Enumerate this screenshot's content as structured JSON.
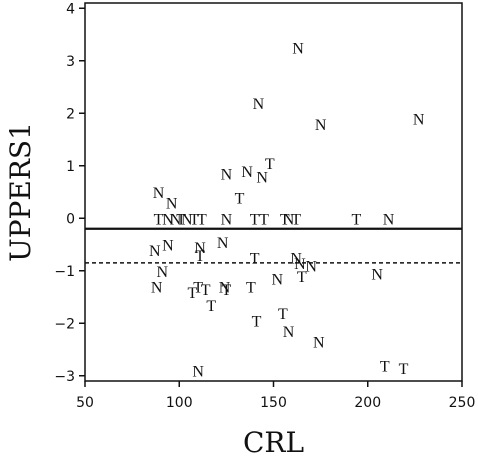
{
  "chart_data": {
    "type": "scatter",
    "title": "",
    "xlabel": "CRL",
    "ylabel": "UPPERS1",
    "xlim": [
      50,
      250
    ],
    "ylim": [
      -3.1,
      4.1
    ],
    "xticks": [
      "50",
      "100",
      "150",
      "200",
      "250"
    ],
    "yticks": [
      "−3",
      "−2",
      "−1",
      "0",
      "1",
      "2",
      "3",
      "4"
    ],
    "grid": false,
    "legend": "none",
    "reference_lines": [
      {
        "style": "solid",
        "y": -0.2
      },
      {
        "style": "dashed",
        "y": -0.85
      }
    ],
    "points": [
      {
        "x": 163,
        "y": 3.25,
        "label": "N"
      },
      {
        "x": 142,
        "y": 2.2,
        "label": "N"
      },
      {
        "x": 227,
        "y": 1.9,
        "label": "N"
      },
      {
        "x": 175,
        "y": 1.8,
        "label": "N"
      },
      {
        "x": 148,
        "y": 1.05,
        "label": "T"
      },
      {
        "x": 125,
        "y": 0.85,
        "label": "N"
      },
      {
        "x": 136,
        "y": 0.9,
        "label": "N"
      },
      {
        "x": 144,
        "y": 0.8,
        "label": "N"
      },
      {
        "x": 132,
        "y": 0.4,
        "label": "T"
      },
      {
        "x": 89,
        "y": 0.5,
        "label": "N"
      },
      {
        "x": 96,
        "y": 0.3,
        "label": "N"
      },
      {
        "x": 89,
        "y": 0.0,
        "label": "T"
      },
      {
        "x": 94,
        "y": 0.0,
        "label": "N"
      },
      {
        "x": 98,
        "y": 0.0,
        "label": "N"
      },
      {
        "x": 101,
        "y": 0.0,
        "label": "T"
      },
      {
        "x": 104,
        "y": 0.0,
        "label": "N"
      },
      {
        "x": 108,
        "y": 0.0,
        "label": "T"
      },
      {
        "x": 112,
        "y": 0.0,
        "label": "T"
      },
      {
        "x": 125,
        "y": 0.0,
        "label": "N"
      },
      {
        "x": 140,
        "y": 0.0,
        "label": "T"
      },
      {
        "x": 145,
        "y": 0.0,
        "label": "T"
      },
      {
        "x": 156,
        "y": 0.0,
        "label": "T"
      },
      {
        "x": 158,
        "y": 0.0,
        "label": "N"
      },
      {
        "x": 162,
        "y": 0.0,
        "label": "T"
      },
      {
        "x": 194,
        "y": 0.0,
        "label": "T"
      },
      {
        "x": 211,
        "y": 0.0,
        "label": "N"
      },
      {
        "x": 87,
        "y": -0.6,
        "label": "N"
      },
      {
        "x": 94,
        "y": -0.5,
        "label": "N"
      },
      {
        "x": 111,
        "y": -0.55,
        "label": "N"
      },
      {
        "x": 123,
        "y": -0.45,
        "label": "N"
      },
      {
        "x": 111,
        "y": -0.7,
        "label": "T"
      },
      {
        "x": 140,
        "y": -0.75,
        "label": "T"
      },
      {
        "x": 162,
        "y": -0.75,
        "label": "N"
      },
      {
        "x": 164,
        "y": -0.85,
        "label": "N"
      },
      {
        "x": 170,
        "y": -0.9,
        "label": "N"
      },
      {
        "x": 91,
        "y": -1.0,
        "label": "N"
      },
      {
        "x": 205,
        "y": -1.05,
        "label": "N"
      },
      {
        "x": 165,
        "y": -1.1,
        "label": "T"
      },
      {
        "x": 152,
        "y": -1.15,
        "label": "N"
      },
      {
        "x": 88,
        "y": -1.3,
        "label": "N"
      },
      {
        "x": 110,
        "y": -1.3,
        "label": "T"
      },
      {
        "x": 114,
        "y": -1.35,
        "label": "T"
      },
      {
        "x": 107,
        "y": -1.4,
        "label": "T"
      },
      {
        "x": 124,
        "y": -1.3,
        "label": "N"
      },
      {
        "x": 125,
        "y": -1.35,
        "label": "T"
      },
      {
        "x": 138,
        "y": -1.3,
        "label": "T"
      },
      {
        "x": 117,
        "y": -1.65,
        "label": "T"
      },
      {
        "x": 155,
        "y": -1.8,
        "label": "T"
      },
      {
        "x": 141,
        "y": -1.95,
        "label": "T"
      },
      {
        "x": 158,
        "y": -2.15,
        "label": "N"
      },
      {
        "x": 174,
        "y": -2.35,
        "label": "N"
      },
      {
        "x": 209,
        "y": -2.8,
        "label": "T"
      },
      {
        "x": 219,
        "y": -2.85,
        "label": "T"
      },
      {
        "x": 110,
        "y": -2.9,
        "label": "N"
      }
    ]
  }
}
